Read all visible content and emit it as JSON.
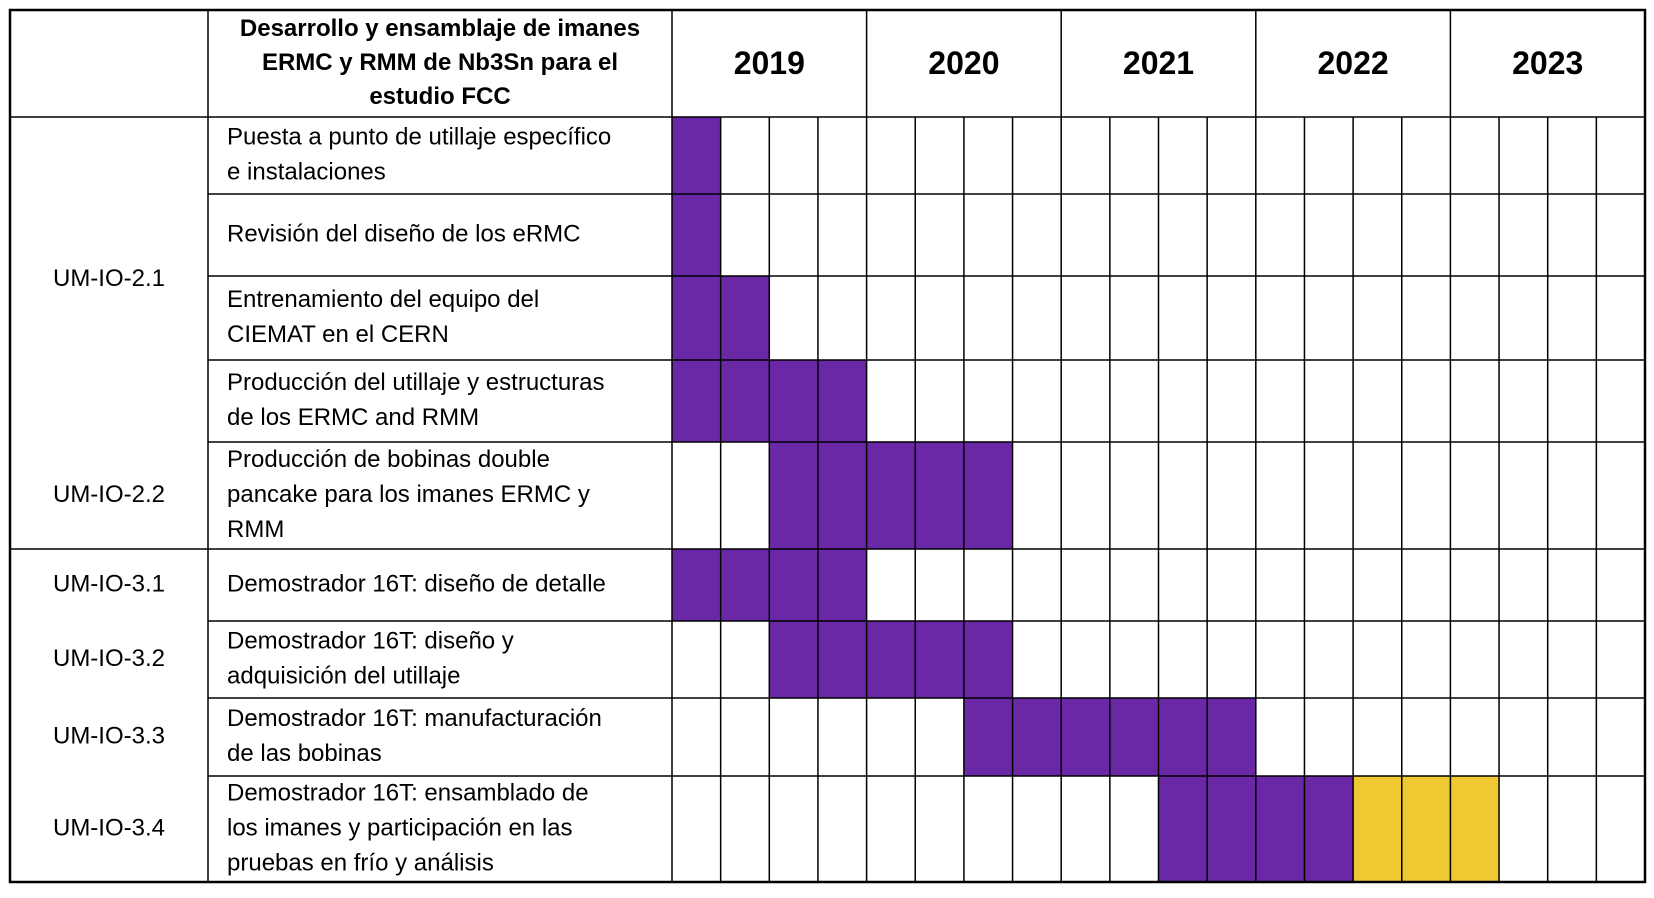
{
  "header": {
    "title_lines": [
      "Desarrollo y ensamblaje de imanes",
      "ERMC y RMM de Nb3Sn para el",
      "estudio FCC"
    ],
    "years": [
      "2019",
      "2020",
      "2021",
      "2022",
      "2023"
    ],
    "quarters_per_year": 4
  },
  "groups": [
    {
      "label": "UM-IO-2.1",
      "rows": [
        0,
        1,
        2,
        3
      ]
    },
    {
      "label": "UM-IO-2.2",
      "rows": [
        4
      ]
    },
    {
      "label": "UM-IO-3.1",
      "rows": [
        5
      ]
    },
    {
      "label": "UM-IO-3.2",
      "rows": [
        6
      ]
    },
    {
      "label": "UM-IO-3.3",
      "rows": [
        7
      ]
    },
    {
      "label": "UM-IO-3.4",
      "rows": [
        8
      ]
    }
  ],
  "tasks": [
    {
      "lines": [
        "Puesta a punto de utillaje específico",
        "e instalaciones"
      ],
      "filled": [
        0
      ],
      "status": "purple"
    },
    {
      "lines": [
        "Revisión del diseño de los eRMC"
      ],
      "filled": [
        0
      ],
      "status": "purple"
    },
    {
      "lines": [
        "Entrenamiento del equipo del",
        "CIEMAT en el CERN"
      ],
      "filled": [
        0,
        1
      ],
      "status": "purple"
    },
    {
      "lines": [
        "Producción del utillaje y estructuras",
        "de los ERMC and RMM"
      ],
      "filled": [
        0,
        1,
        2,
        3
      ],
      "status": "purple"
    },
    {
      "lines": [
        "Producción de bobinas double",
        "pancake para los imanes ERMC y",
        "RMM"
      ],
      "filled": [
        2,
        3,
        4,
        5,
        6
      ],
      "status": "purple"
    },
    {
      "lines": [
        "Demostrador 16T: diseño de detalle"
      ],
      "filled": [
        0,
        1,
        2,
        3
      ],
      "status": "purple"
    },
    {
      "lines": [
        "Demostrador 16T: diseño y",
        "adquisición del utillaje"
      ],
      "filled": [
        2,
        3,
        4,
        5,
        6
      ],
      "status": "purple"
    },
    {
      "lines": [
        "Demostrador 16T: manufacturación",
        "de las bobinas"
      ],
      "filled": [
        6,
        7,
        8,
        9,
        10,
        11
      ],
      "status": "purple"
    },
    {
      "lines": [
        "Demostrador 16T: ensamblado de",
        "los imanes y participación en las",
        "pruebas en frío y análisis"
      ],
      "filled": [
        10,
        11,
        12,
        13
      ],
      "yellow": [
        14,
        15,
        16
      ],
      "status": "mixed"
    }
  ],
  "colors": {
    "purple": "#6a28a6",
    "yellow": "#f0c832",
    "border": "#000000",
    "background": "#ffffff"
  }
}
